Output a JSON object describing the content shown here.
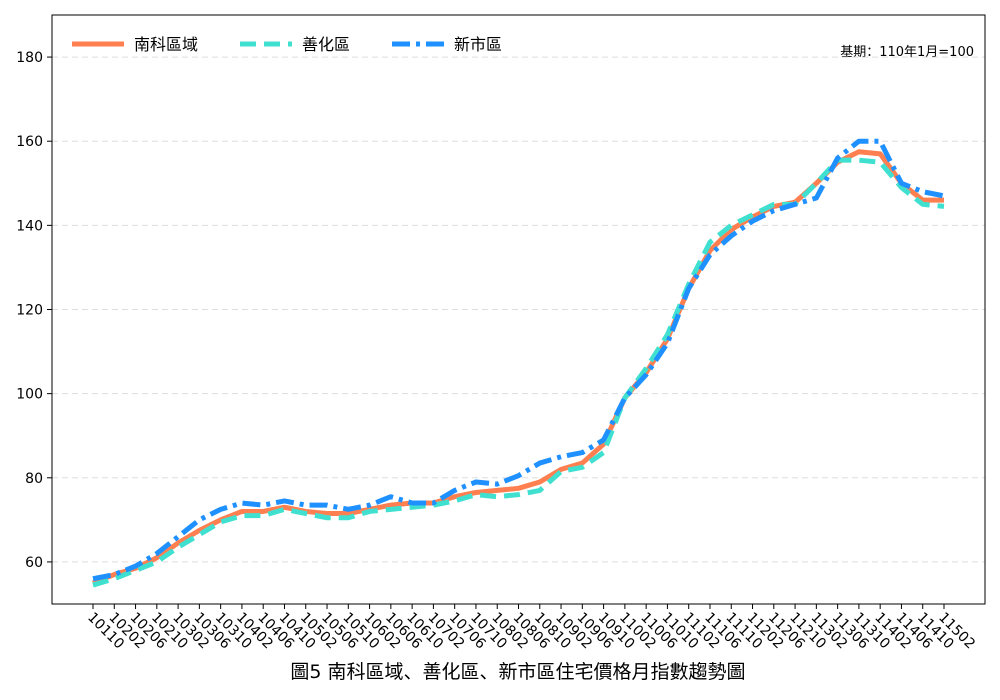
{
  "chart_data": {
    "type": "line",
    "title": "圖5 南科區域、善化區、新市區住宅價格月指數趨勢圖",
    "annotation": "基期：110年1月=100",
    "categories": [
      "10110",
      "10202",
      "10206",
      "10210",
      "10302",
      "10306",
      "10310",
      "10402",
      "10406",
      "10410",
      "10502",
      "10506",
      "10510",
      "10602",
      "10606",
      "10610",
      "10702",
      "10706",
      "10710",
      "10802",
      "10806",
      "10810",
      "10902",
      "10906",
      "10910",
      "11002",
      "11006",
      "11010",
      "11102",
      "11106",
      "11110",
      "11202",
      "11206",
      "11210",
      "11302",
      "11306",
      "11310",
      "11402",
      "11406",
      "11410",
      "11502"
    ],
    "series": [
      {
        "name": "南科區域",
        "color": "#ff7f50",
        "linestyle": "solid",
        "values": [
          55,
          57,
          58.5,
          61,
          64.5,
          67.5,
          70,
          72,
          72,
          73,
          72,
          71.5,
          71.5,
          72.5,
          73.5,
          74,
          74,
          75.5,
          76.5,
          77,
          77.5,
          79,
          82,
          83.5,
          88,
          99,
          105,
          113,
          125,
          134,
          139,
          142,
          144.5,
          145.5,
          150,
          155,
          157.5,
          157,
          150,
          146,
          146
        ]
      },
      {
        "name": "善化區",
        "color": "#40e0d0",
        "linestyle": "dashed",
        "values": [
          54.5,
          56,
          58,
          60,
          63.5,
          66.5,
          69.5,
          71,
          71,
          72.5,
          71.5,
          70.5,
          70.5,
          72,
          72.5,
          73,
          73.5,
          74.5,
          76,
          75.5,
          76,
          77,
          81.5,
          82.5,
          86,
          99,
          106,
          114,
          126,
          136,
          140,
          142.5,
          145,
          145,
          150,
          155.5,
          155.5,
          155,
          149,
          145,
          144.5
        ]
      },
      {
        "name": "新市區",
        "color": "#1e90ff",
        "linestyle": "dashdot",
        "values": [
          56,
          57,
          59,
          62,
          66,
          70,
          72.5,
          74,
          73.5,
          74.5,
          73.5,
          73.5,
          72.5,
          73.5,
          75.5,
          74,
          74,
          77,
          79,
          78.5,
          80.5,
          83.5,
          85,
          86,
          89,
          99,
          104.5,
          112,
          125,
          133,
          137.5,
          141,
          143.5,
          145,
          146.5,
          156,
          160,
          160,
          150,
          148,
          147
        ]
      }
    ],
    "ylim": [
      50,
      190
    ],
    "yticks": [
      60,
      80,
      100,
      120,
      140,
      160,
      180
    ],
    "grid": true,
    "legend": "upper left"
  }
}
